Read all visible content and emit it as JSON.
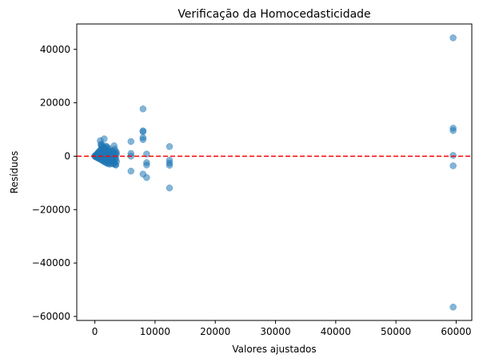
{
  "chart_data": {
    "type": "scatter",
    "title": "Verificação da Homocedasticidade",
    "xlabel": "Valores ajustados",
    "ylabel": "Resíduos",
    "xlim": [
      -3000,
      62600
    ],
    "ylim": [
      -61500,
      49500
    ],
    "xticks": [
      0,
      10000,
      20000,
      30000,
      40000,
      50000,
      60000
    ],
    "xtick_labels": [
      "0",
      "10000",
      "20000",
      "30000",
      "40000",
      "50000",
      "60000"
    ],
    "yticks": [
      -60000,
      -40000,
      -20000,
      0,
      20000,
      40000
    ],
    "ytick_labels": [
      "−60000",
      "−40000",
      "−20000",
      "0",
      "20000",
      "40000"
    ],
    "grid": false,
    "point_color": "#1f77b4",
    "reference_line": {
      "y": 0,
      "color": "#ff0000",
      "style": "dashed"
    },
    "series": [
      {
        "points": [
          [
            0,
            100
          ],
          [
            50,
            -150
          ],
          [
            100,
            300
          ],
          [
            150,
            50
          ],
          [
            200,
            -200
          ],
          [
            250,
            250
          ],
          [
            300,
            600
          ],
          [
            300,
            -400
          ],
          [
            350,
            150
          ],
          [
            400,
            900
          ],
          [
            400,
            -300
          ],
          [
            450,
            -600
          ],
          [
            500,
            400
          ],
          [
            500,
            1200
          ],
          [
            550,
            -100
          ],
          [
            600,
            -800
          ],
          [
            600,
            700
          ],
          [
            650,
            1500
          ],
          [
            700,
            200
          ],
          [
            700,
            -500
          ],
          [
            750,
            1800
          ],
          [
            800,
            -1000
          ],
          [
            800,
            1000
          ],
          [
            850,
            300
          ],
          [
            900,
            5800
          ],
          [
            900,
            2200
          ],
          [
            950,
            -1200
          ],
          [
            1000,
            4500
          ],
          [
            1000,
            500
          ],
          [
            1000,
            -700
          ],
          [
            1050,
            2600
          ],
          [
            1100,
            3900
          ],
          [
            1100,
            -1400
          ],
          [
            1150,
            800
          ],
          [
            1200,
            3000
          ],
          [
            1200,
            4200
          ],
          [
            1250,
            -300
          ],
          [
            1300,
            2000
          ],
          [
            1300,
            -1600
          ],
          [
            1350,
            1100
          ],
          [
            1400,
            3500
          ],
          [
            1400,
            -900
          ],
          [
            1450,
            -1900
          ],
          [
            1500,
            2500
          ],
          [
            1500,
            400
          ],
          [
            1550,
            6500
          ],
          [
            1600,
            1600
          ],
          [
            1600,
            -2100
          ],
          [
            1650,
            3200
          ],
          [
            1700,
            -400
          ],
          [
            1700,
            2800
          ],
          [
            1750,
            1300
          ],
          [
            1800,
            -2300
          ],
          [
            1800,
            900
          ],
          [
            1850,
            3800
          ],
          [
            1900,
            -1100
          ],
          [
            1900,
            2100
          ],
          [
            1950,
            600
          ],
          [
            2000,
            -2600
          ],
          [
            2000,
            1700
          ],
          [
            2050,
            3400
          ],
          [
            2100,
            -1500
          ],
          [
            2100,
            200
          ],
          [
            2150,
            2400
          ],
          [
            2200,
            -2800
          ],
          [
            2200,
            1000
          ],
          [
            2250,
            -300
          ],
          [
            2300,
            2900
          ],
          [
            2300,
            -1800
          ],
          [
            2350,
            500
          ],
          [
            2400,
            -2400
          ],
          [
            2400,
            1500
          ],
          [
            2450,
            -700
          ],
          [
            2500,
            2000
          ],
          [
            2500,
            -3000
          ],
          [
            2550,
            300
          ],
          [
            2600,
            -1300
          ],
          [
            2650,
            1200
          ],
          [
            2700,
            -2000
          ],
          [
            2700,
            800
          ],
          [
            2750,
            -500
          ],
          [
            2800,
            1600
          ],
          [
            2800,
            -2700
          ],
          [
            2850,
            100
          ],
          [
            2900,
            -1600
          ],
          [
            2950,
            700
          ],
          [
            3000,
            -2200
          ],
          [
            3000,
            1900
          ],
          [
            3050,
            -900
          ],
          [
            3100,
            400
          ],
          [
            3100,
            -2900
          ],
          [
            3150,
            1100
          ],
          [
            3200,
            3900
          ],
          [
            3200,
            -1700
          ],
          [
            3250,
            200
          ],
          [
            3300,
            -2500
          ],
          [
            3300,
            2600
          ],
          [
            3350,
            -600
          ],
          [
            3400,
            900
          ],
          [
            3400,
            -3200
          ],
          [
            3450,
            1800
          ],
          [
            3500,
            -1000
          ],
          [
            3500,
            -3300
          ],
          [
            3550,
            500
          ],
          [
            3600,
            -2000
          ],
          [
            3600,
            1300
          ],
          [
            6000,
            5500
          ],
          [
            6000,
            -5600
          ],
          [
            6000,
            1000
          ],
          [
            6000,
            0
          ],
          [
            8000,
            17700
          ],
          [
            8000,
            9500
          ],
          [
            8000,
            9200
          ],
          [
            8000,
            7000
          ],
          [
            8000,
            6200
          ],
          [
            8000,
            -6700
          ],
          [
            8600,
            800
          ],
          [
            8600,
            -2400
          ],
          [
            8600,
            -3300
          ],
          [
            8600,
            -8000
          ],
          [
            12400,
            3600
          ],
          [
            12400,
            -1500
          ],
          [
            12400,
            -2600
          ],
          [
            12400,
            -3400
          ],
          [
            12400,
            -11900
          ],
          [
            59500,
            44300
          ],
          [
            59500,
            10500
          ],
          [
            59500,
            9600
          ],
          [
            59500,
            300
          ],
          [
            59500,
            -3600
          ],
          [
            59500,
            -56500
          ]
        ]
      }
    ]
  }
}
